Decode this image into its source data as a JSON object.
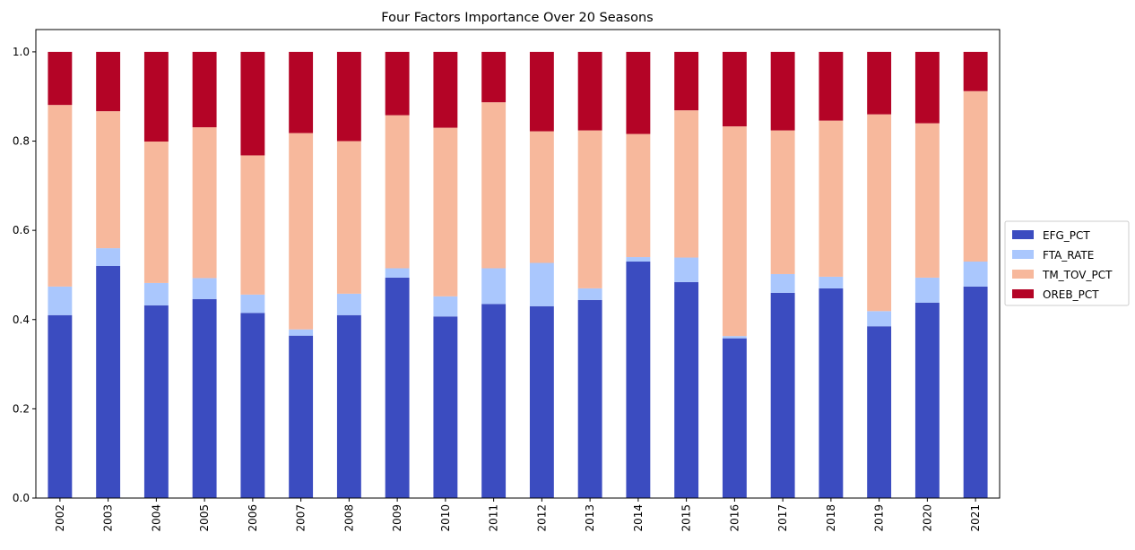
{
  "chart_data": {
    "type": "bar",
    "stacked": true,
    "title": "Four Factors Importance Over 20 Seasons",
    "xlabel": "",
    "ylabel": "",
    "ylim": [
      0,
      1.05
    ],
    "yticks": [
      "0.0",
      "0.2",
      "0.4",
      "0.6",
      "0.8",
      "1.0"
    ],
    "categories": [
      "2002",
      "2003",
      "2004",
      "2005",
      "2006",
      "2007",
      "2008",
      "2009",
      "2010",
      "2011",
      "2012",
      "2013",
      "2014",
      "2015",
      "2016",
      "2017",
      "2018",
      "2019",
      "2020",
      "2021"
    ],
    "series": [
      {
        "name": "EFG_PCT",
        "color": "#3b4cc0",
        "values": [
          0.41,
          0.52,
          0.432,
          0.446,
          0.415,
          0.364,
          0.41,
          0.494,
          0.407,
          0.435,
          0.43,
          0.444,
          0.53,
          0.484,
          0.358,
          0.46,
          0.47,
          0.385,
          0.438,
          0.474
        ]
      },
      {
        "name": "FTA_RATE",
        "color": "#aac7fd",
        "values": [
          0.064,
          0.04,
          0.05,
          0.047,
          0.041,
          0.014,
          0.048,
          0.021,
          0.045,
          0.08,
          0.097,
          0.026,
          0.01,
          0.055,
          0.005,
          0.042,
          0.026,
          0.034,
          0.056,
          0.056
        ]
      },
      {
        "name": "TM_TOV_PCT",
        "color": "#f7b89c",
        "values": [
          0.407,
          0.307,
          0.317,
          0.338,
          0.312,
          0.44,
          0.342,
          0.343,
          0.378,
          0.372,
          0.295,
          0.354,
          0.276,
          0.33,
          0.47,
          0.322,
          0.35,
          0.441,
          0.346,
          0.382
        ]
      },
      {
        "name": "OREB_PCT",
        "color": "#b40426",
        "values": [
          0.119,
          0.133,
          0.201,
          0.169,
          0.232,
          0.182,
          0.2,
          0.142,
          0.17,
          0.113,
          0.178,
          0.176,
          0.184,
          0.131,
          0.167,
          0.176,
          0.154,
          0.14,
          0.16,
          0.088
        ]
      }
    ],
    "legend": "center-right",
    "grid": false
  }
}
